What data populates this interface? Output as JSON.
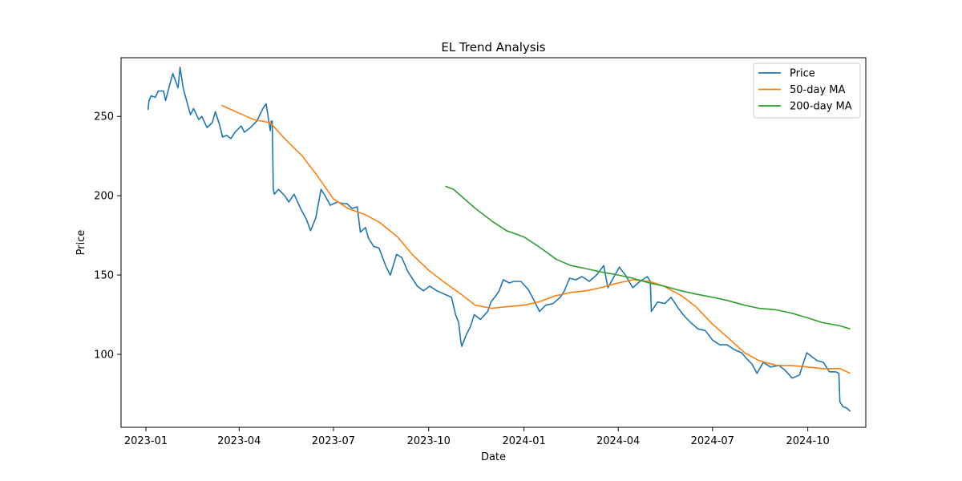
{
  "chart_data": {
    "type": "line",
    "title": "EL Trend Analysis",
    "xlabel": "Date",
    "ylabel": "Price",
    "xlim": [
      "2022-12-08",
      "2024-11-26"
    ],
    "ylim": [
      54,
      287
    ],
    "grid": false,
    "legend_position": "top-right",
    "x_ticks": [
      "2023-01",
      "2023-04",
      "2023-07",
      "2023-10",
      "2024-01",
      "2024-04",
      "2024-07",
      "2024-10"
    ],
    "y_ticks": [
      100,
      150,
      200,
      250
    ],
    "series": [
      {
        "name": "Price",
        "color": "#1f77b4",
        "points": [
          [
            "2023-01-03",
            254
          ],
          [
            "2023-01-04",
            260
          ],
          [
            "2023-01-06",
            263
          ],
          [
            "2023-01-10",
            262
          ],
          [
            "2023-01-13",
            266
          ],
          [
            "2023-01-18",
            266
          ],
          [
            "2023-01-20",
            260
          ],
          [
            "2023-01-24",
            270
          ],
          [
            "2023-01-27",
            277
          ],
          [
            "2023-02-01",
            268
          ],
          [
            "2023-02-03",
            281
          ],
          [
            "2023-02-06",
            268
          ],
          [
            "2023-02-08",
            263
          ],
          [
            "2023-02-13",
            251
          ],
          [
            "2023-02-16",
            255
          ],
          [
            "2023-02-21",
            248
          ],
          [
            "2023-02-24",
            250
          ],
          [
            "2023-03-01",
            243
          ],
          [
            "2023-03-06",
            246
          ],
          [
            "2023-03-09",
            253
          ],
          [
            "2023-03-13",
            245
          ],
          [
            "2023-03-16",
            237
          ],
          [
            "2023-03-20",
            238
          ],
          [
            "2023-03-24",
            236
          ],
          [
            "2023-03-28",
            240
          ],
          [
            "2023-04-03",
            244
          ],
          [
            "2023-04-06",
            240
          ],
          [
            "2023-04-12",
            243
          ],
          [
            "2023-04-18",
            247
          ],
          [
            "2023-04-24",
            255
          ],
          [
            "2023-04-27",
            258
          ],
          [
            "2023-04-28",
            254
          ],
          [
            "2023-05-01",
            241
          ],
          [
            "2023-05-02",
            247
          ],
          [
            "2023-05-03",
            247
          ],
          [
            "2023-05-04",
            204
          ],
          [
            "2023-05-05",
            201
          ],
          [
            "2023-05-09",
            204
          ],
          [
            "2023-05-15",
            200
          ],
          [
            "2023-05-19",
            196
          ],
          [
            "2023-05-24",
            201
          ],
          [
            "2023-05-31",
            191
          ],
          [
            "2023-06-05",
            185
          ],
          [
            "2023-06-09",
            178
          ],
          [
            "2023-06-14",
            186
          ],
          [
            "2023-06-19",
            204
          ],
          [
            "2023-06-23",
            200
          ],
          [
            "2023-06-28",
            194
          ],
          [
            "2023-07-05",
            196
          ],
          [
            "2023-07-10",
            195
          ],
          [
            "2023-07-14",
            195
          ],
          [
            "2023-07-19",
            192
          ],
          [
            "2023-07-24",
            193
          ],
          [
            "2023-07-27",
            177
          ],
          [
            "2023-08-01",
            180
          ],
          [
            "2023-08-04",
            173
          ],
          [
            "2023-08-09",
            168
          ],
          [
            "2023-08-14",
            167
          ],
          [
            "2023-08-21",
            155
          ],
          [
            "2023-08-25",
            150
          ],
          [
            "2023-08-31",
            163
          ],
          [
            "2023-09-05",
            161
          ],
          [
            "2023-09-11",
            152
          ],
          [
            "2023-09-15",
            148
          ],
          [
            "2023-09-20",
            143
          ],
          [
            "2023-09-26",
            140
          ],
          [
            "2023-10-02",
            143
          ],
          [
            "2023-10-09",
            140
          ],
          [
            "2023-10-16",
            138
          ],
          [
            "2023-10-23",
            136
          ],
          [
            "2023-10-27",
            125
          ],
          [
            "2023-10-30",
            120
          ],
          [
            "2023-11-01",
            108
          ],
          [
            "2023-11-02",
            105
          ],
          [
            "2023-11-06",
            112
          ],
          [
            "2023-11-10",
            117
          ],
          [
            "2023-11-14",
            125
          ],
          [
            "2023-11-20",
            122
          ],
          [
            "2023-11-27",
            127
          ],
          [
            "2023-11-30",
            133
          ],
          [
            "2023-12-05",
            137
          ],
          [
            "2023-12-08",
            140
          ],
          [
            "2023-12-12",
            147
          ],
          [
            "2023-12-18",
            145
          ],
          [
            "2023-12-22",
            146
          ],
          [
            "2023-12-29",
            146
          ],
          [
            "2024-01-05",
            141
          ],
          [
            "2024-01-10",
            135
          ],
          [
            "2024-01-16",
            127
          ],
          [
            "2024-01-22",
            131
          ],
          [
            "2024-01-29",
            132
          ],
          [
            "2024-02-05",
            136
          ],
          [
            "2024-02-09",
            140
          ],
          [
            "2024-02-14",
            148
          ],
          [
            "2024-02-20",
            147
          ],
          [
            "2024-02-26",
            149
          ],
          [
            "2024-03-04",
            146
          ],
          [
            "2024-03-11",
            150
          ],
          [
            "2024-03-18",
            156
          ],
          [
            "2024-03-22",
            142
          ],
          [
            "2024-03-28",
            149
          ],
          [
            "2024-04-02",
            155
          ],
          [
            "2024-04-08",
            150
          ],
          [
            "2024-04-15",
            142
          ],
          [
            "2024-04-22",
            146
          ],
          [
            "2024-04-29",
            149
          ],
          [
            "2024-05-02",
            146
          ],
          [
            "2024-05-03",
            127
          ],
          [
            "2024-05-09",
            133
          ],
          [
            "2024-05-16",
            132
          ],
          [
            "2024-05-22",
            136
          ],
          [
            "2024-05-29",
            129
          ],
          [
            "2024-06-04",
            124
          ],
          [
            "2024-06-10",
            120
          ],
          [
            "2024-06-17",
            116
          ],
          [
            "2024-06-24",
            115
          ],
          [
            "2024-07-01",
            109
          ],
          [
            "2024-07-08",
            106
          ],
          [
            "2024-07-15",
            106
          ],
          [
            "2024-07-22",
            103
          ],
          [
            "2024-07-29",
            101
          ],
          [
            "2024-08-02",
            98
          ],
          [
            "2024-08-08",
            94
          ],
          [
            "2024-08-13",
            88
          ],
          [
            "2024-08-19",
            95
          ],
          [
            "2024-08-26",
            92
          ],
          [
            "2024-09-03",
            93
          ],
          [
            "2024-09-09",
            90
          ],
          [
            "2024-09-16",
            85
          ],
          [
            "2024-09-23",
            87
          ],
          [
            "2024-09-26",
            93
          ],
          [
            "2024-09-30",
            101
          ],
          [
            "2024-10-04",
            99
          ],
          [
            "2024-10-10",
            96
          ],
          [
            "2024-10-16",
            95
          ],
          [
            "2024-10-22",
            89
          ],
          [
            "2024-10-28",
            89
          ],
          [
            "2024-10-31",
            88
          ],
          [
            "2024-11-01",
            70
          ],
          [
            "2024-11-04",
            67
          ],
          [
            "2024-11-08",
            66
          ],
          [
            "2024-11-11",
            64
          ]
        ]
      },
      {
        "name": "50-day MA",
        "color": "#ff7f0e",
        "points": [
          [
            "2023-03-15",
            257
          ],
          [
            "2023-04-01",
            252
          ],
          [
            "2023-04-15",
            248
          ],
          [
            "2023-05-01",
            246
          ],
          [
            "2023-05-15",
            236
          ],
          [
            "2023-06-01",
            225
          ],
          [
            "2023-06-15",
            213
          ],
          [
            "2023-07-01",
            198
          ],
          [
            "2023-07-15",
            192
          ],
          [
            "2023-08-01",
            188
          ],
          [
            "2023-08-15",
            183
          ],
          [
            "2023-09-01",
            174
          ],
          [
            "2023-09-15",
            163
          ],
          [
            "2023-10-01",
            153
          ],
          [
            "2023-10-15",
            146
          ],
          [
            "2023-11-01",
            138
          ],
          [
            "2023-11-15",
            131
          ],
          [
            "2023-12-01",
            129
          ],
          [
            "2023-12-15",
            130
          ],
          [
            "2024-01-01",
            131
          ],
          [
            "2024-01-15",
            133
          ],
          [
            "2024-02-01",
            137
          ],
          [
            "2024-02-15",
            139
          ],
          [
            "2024-03-01",
            140
          ],
          [
            "2024-03-15",
            142
          ],
          [
            "2024-04-01",
            145
          ],
          [
            "2024-04-15",
            147
          ],
          [
            "2024-05-01",
            146
          ],
          [
            "2024-05-15",
            143
          ],
          [
            "2024-06-01",
            137
          ],
          [
            "2024-06-15",
            130
          ],
          [
            "2024-07-01",
            119
          ],
          [
            "2024-07-15",
            111
          ],
          [
            "2024-08-01",
            101
          ],
          [
            "2024-08-15",
            96
          ],
          [
            "2024-09-01",
            93
          ],
          [
            "2024-09-15",
            93
          ],
          [
            "2024-10-01",
            92
          ],
          [
            "2024-10-15",
            91
          ],
          [
            "2024-11-01",
            91
          ],
          [
            "2024-11-11",
            88
          ]
        ]
      },
      {
        "name": "200-day MA",
        "color": "#2ca02c",
        "points": [
          [
            "2023-10-17",
            206
          ],
          [
            "2023-10-25",
            204
          ],
          [
            "2023-11-01",
            200
          ],
          [
            "2023-11-15",
            192
          ],
          [
            "2023-12-01",
            184
          ],
          [
            "2023-12-15",
            178
          ],
          [
            "2024-01-01",
            174
          ],
          [
            "2024-01-15",
            168
          ],
          [
            "2024-02-01",
            160
          ],
          [
            "2024-02-15",
            156
          ],
          [
            "2024-03-01",
            154
          ],
          [
            "2024-03-15",
            152
          ],
          [
            "2024-04-01",
            150
          ],
          [
            "2024-04-15",
            148
          ],
          [
            "2024-05-01",
            145
          ],
          [
            "2024-05-15",
            143
          ],
          [
            "2024-06-01",
            140
          ],
          [
            "2024-06-15",
            138
          ],
          [
            "2024-07-01",
            136
          ],
          [
            "2024-07-15",
            134
          ],
          [
            "2024-08-01",
            131
          ],
          [
            "2024-08-15",
            129
          ],
          [
            "2024-09-01",
            128
          ],
          [
            "2024-09-15",
            126
          ],
          [
            "2024-10-01",
            123
          ],
          [
            "2024-10-15",
            120
          ],
          [
            "2024-11-01",
            118
          ],
          [
            "2024-11-11",
            116
          ]
        ]
      }
    ]
  }
}
